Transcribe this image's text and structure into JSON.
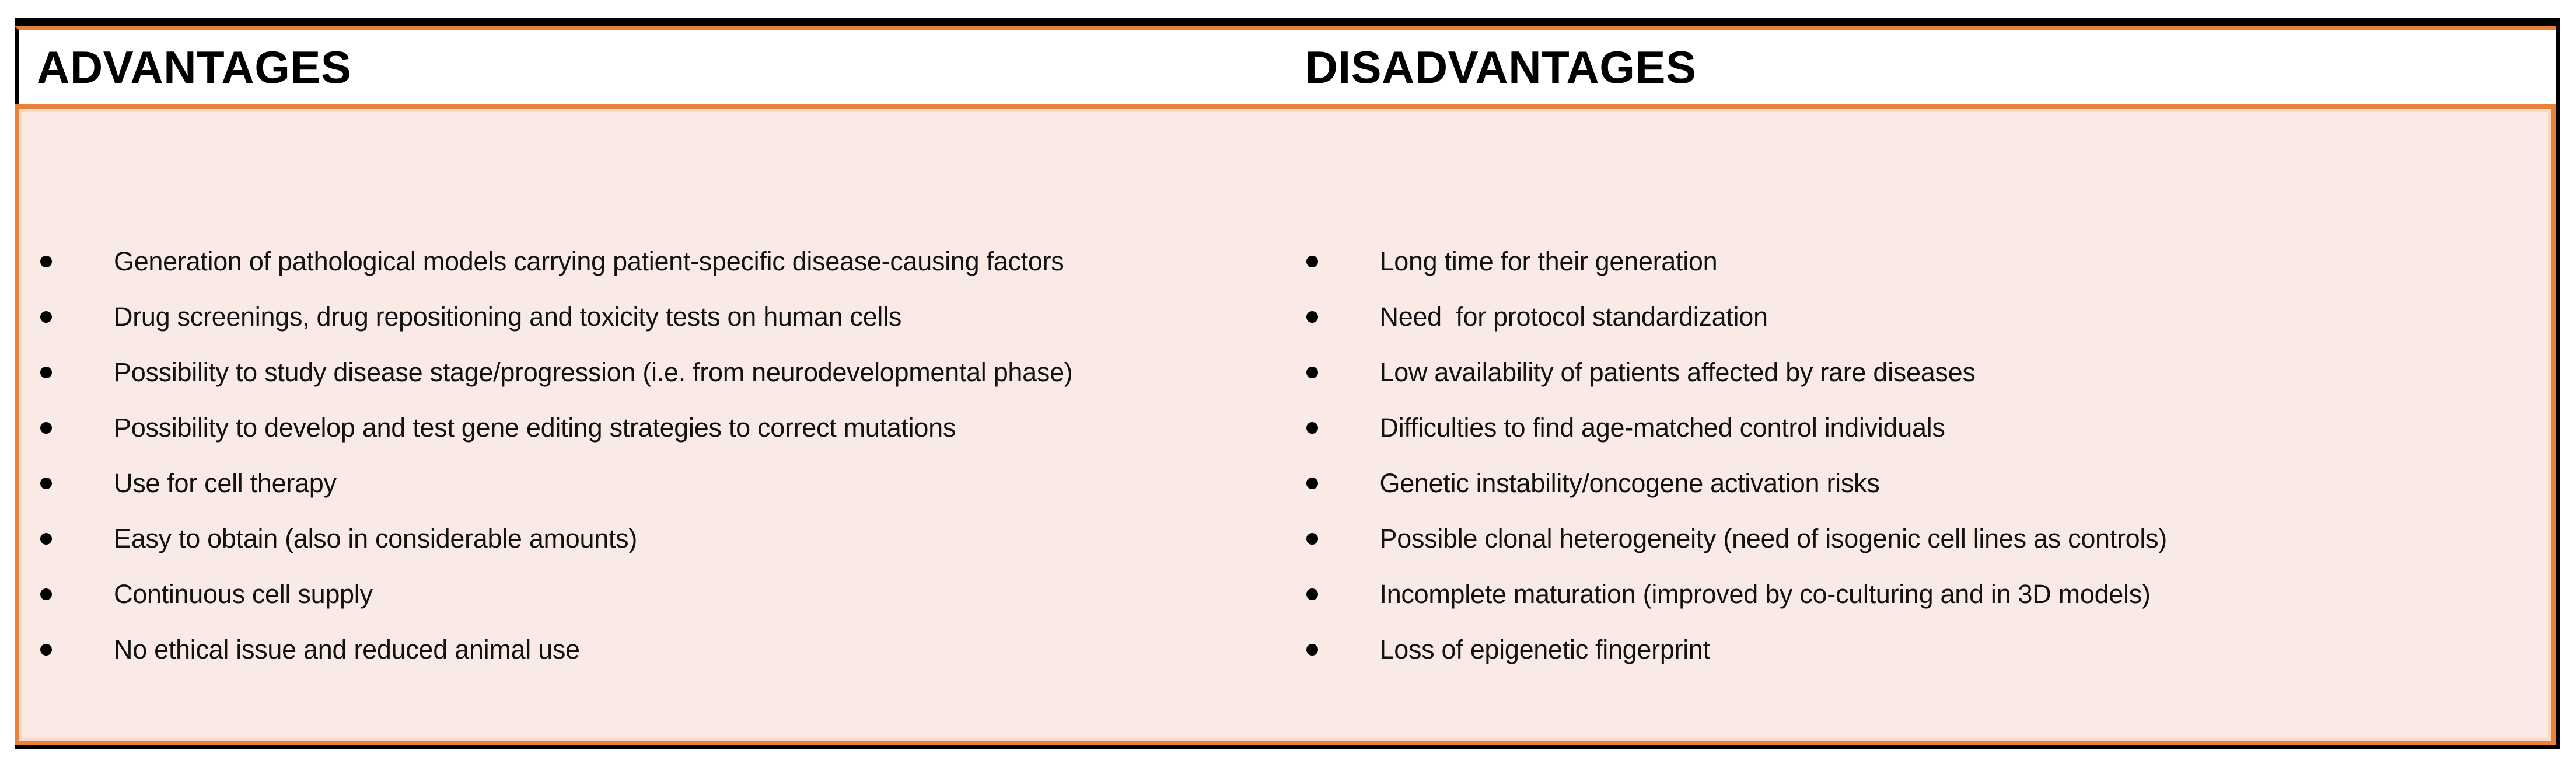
{
  "colors": {
    "frame": "#000000",
    "accent": "#E8823A",
    "header_bg": "#FFFFFF",
    "body_bg": "#FAEAE5",
    "highlight": "#F9D8C4",
    "text": "#121212",
    "bullet": "#000000"
  },
  "table": {
    "columns": [
      {
        "header": "ADVANTAGES",
        "items": [
          "Generation of pathological models carrying patient-specific disease-causing factors",
          "Drug screenings, drug repositioning and toxicity tests on human cells",
          "Possibility to study disease stage/progression (i.e. from neurodevelopmental phase)",
          "Possibility to develop and test gene editing strategies to correct mutations",
          "Use for cell therapy",
          "Easy to obtain (also in considerable amounts)",
          "Continuous cell supply",
          "No ethical issue and reduced animal use"
        ]
      },
      {
        "header": "DISADVANTAGES",
        "items": [
          "Long time for their generation",
          "Need  for protocol standardization",
          "Low availability of patients affected by rare diseases",
          "Difficulties to find age-matched control individuals",
          "Genetic instability/oncogene activation risks",
          "Possible clonal heterogeneity (need of isogenic cell lines as controls)",
          "Incomplete maturation (improved by co-culturing and in 3D models)",
          "Loss of epigenetic fingerprint"
        ]
      }
    ]
  }
}
